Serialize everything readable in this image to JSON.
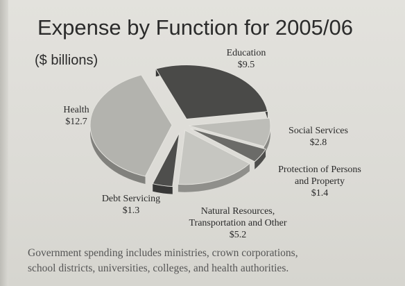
{
  "chart_data": {
    "type": "pie",
    "title": "Expense by Function for 2005/06",
    "subtitle": "($ billions)",
    "slices": [
      {
        "name": "Education",
        "value": 9.5,
        "value_label": "$9.5",
        "color": "#4a4a48"
      },
      {
        "name": "Social Services",
        "value": 2.8,
        "value_label": "$2.8",
        "color": "#bdbdb8"
      },
      {
        "name": "Protection of Persons and Property",
        "name_lines": [
          "Protection of Persons",
          "and Property"
        ],
        "value": 1.4,
        "value_label": "$1.4",
        "color": "#6b6b68"
      },
      {
        "name": "Natural Resources, Transportation and Other",
        "name_lines": [
          "Natural Resources,",
          "Transportation and Other"
        ],
        "value": 5.2,
        "value_label": "$5.2",
        "color": "#c6c6c1"
      },
      {
        "name": "Debt Servicing",
        "value": 1.3,
        "value_label": "$1.3",
        "color": "#4e4e4c"
      },
      {
        "name": "Health",
        "value": 12.7,
        "value_label": "$12.7",
        "color": "#b3b3ae"
      }
    ]
  },
  "footnote": {
    "line1": "Government spending includes ministries, crown corporations,",
    "line2": "school districts, universities, colleges, and health authorities."
  }
}
